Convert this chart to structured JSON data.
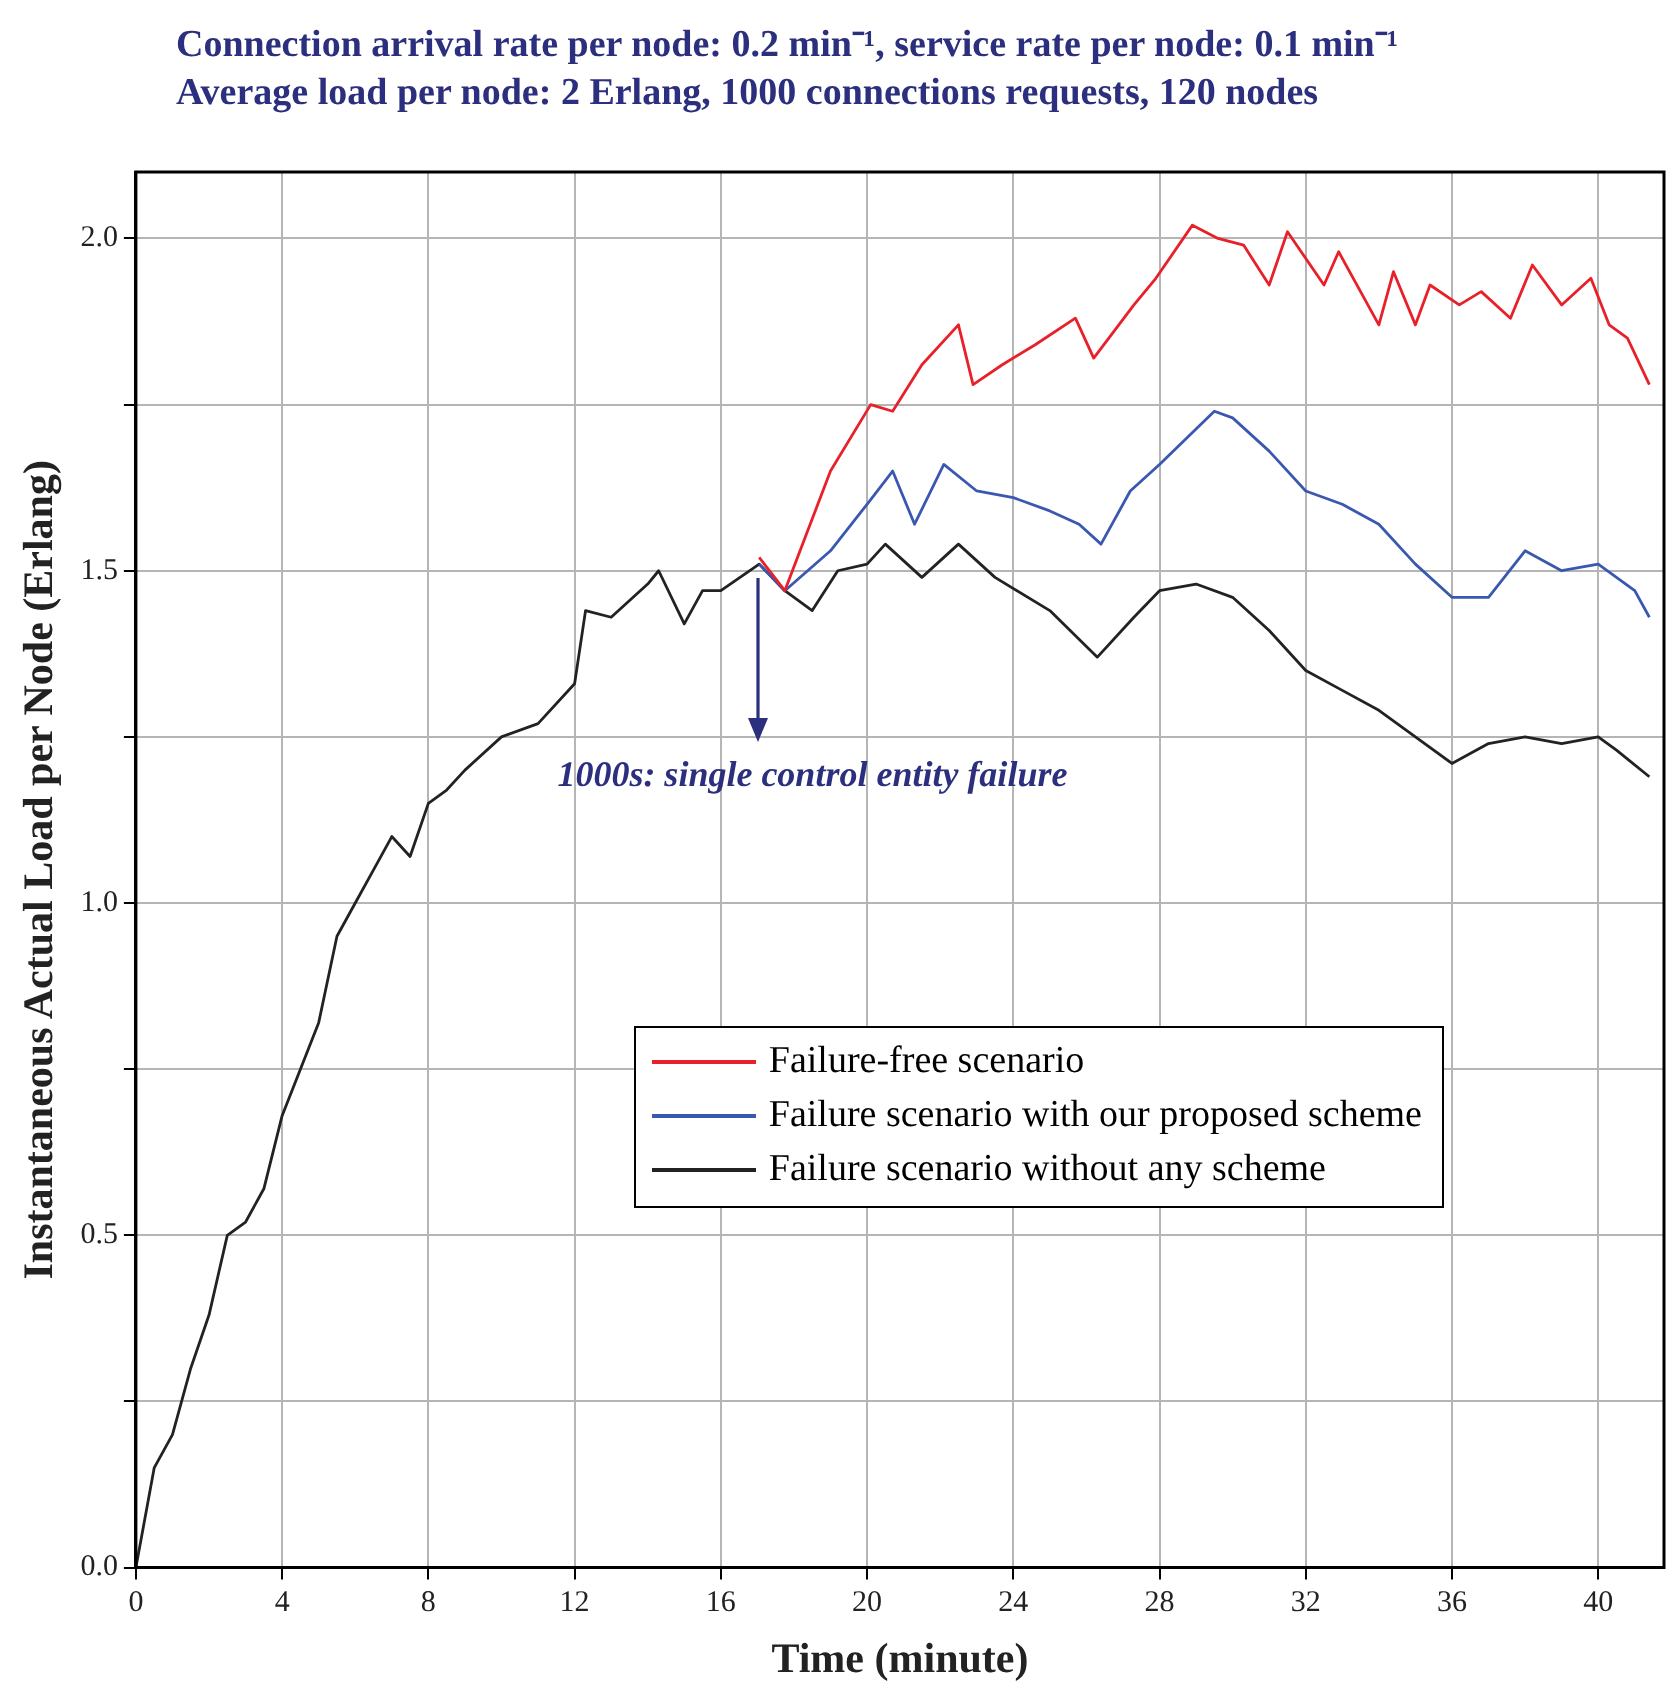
{
  "chart_data": {
    "type": "line",
    "title": "Connection arrival rate per node: 0.2 min⁻¹, service rate per node: 0.1 min⁻¹",
    "subtitle": "Average load per node: 2 Erlang, 1000 connections requests, 120 nodes",
    "xlabel": "Time (minute)",
    "ylabel": "Instantaneous Actual Load per Node (Erlang)",
    "xlim": [
      0,
      41.8
    ],
    "xticks": [
      0,
      4,
      8,
      12,
      16,
      20,
      24,
      28,
      32,
      36,
      40
    ],
    "ylim": [
      0,
      2.1
    ],
    "yticks": [
      {
        "value": 0,
        "label": "0.0"
      },
      {
        "value": 0.25,
        "label": null
      },
      {
        "value": 0.5,
        "label": "0.5"
      },
      {
        "value": 0.75,
        "label": null
      },
      {
        "value": 1,
        "label": "1.0"
      },
      {
        "value": 1.25,
        "label": null
      },
      {
        "value": 1.5,
        "label": "1.5"
      },
      {
        "value": 1.75,
        "label": null
      },
      {
        "value": 2,
        "label": "2.0"
      }
    ],
    "grid": true,
    "legend": "bottom right",
    "marker": "none",
    "line_style": "solid",
    "annotations": [
      {
        "text": "1000s: single control entity failure",
        "x": 17,
        "y": 1.5
      }
    ],
    "series": [
      {
        "name": "Failure-free scenario",
        "color": "#e8202a",
        "x": [
          17.05,
          17.75,
          19,
          20.1,
          20.7,
          21.5,
          22.5,
          22.9,
          23.7,
          24.6,
          25.7,
          26.2,
          27.3,
          27.9,
          28.9,
          29.6,
          30.3,
          31,
          31.5,
          32.5,
          32.9,
          34,
          34.4,
          35,
          35.4,
          36.2,
          36.8,
          37.6,
          38.2,
          39,
          39.8,
          40.3,
          40.8,
          41.4
        ],
        "values": [
          1.52,
          1.47,
          1.65,
          1.75,
          1.74,
          1.81,
          1.87,
          1.78,
          1.81,
          1.84,
          1.88,
          1.82,
          1.9,
          1.94,
          2.02,
          2.0,
          1.99,
          1.93,
          2.01,
          1.93,
          1.98,
          1.87,
          1.95,
          1.87,
          1.93,
          1.9,
          1.92,
          1.88,
          1.96,
          1.9,
          1.94,
          1.87,
          1.85,
          1.78
        ]
      },
      {
        "name": "Failure scenario with our proposed scheme",
        "color": "#3a58b0",
        "x": [
          17.05,
          17.75,
          19,
          20,
          20.7,
          21.3,
          22.1,
          23,
          24,
          25,
          25.8,
          26.4,
          27.2,
          28,
          29.5,
          30,
          31,
          32,
          33,
          34,
          35,
          36,
          37,
          38,
          39,
          40,
          41,
          41.4
        ],
        "values": [
          1.51,
          1.47,
          1.53,
          1.6,
          1.65,
          1.57,
          1.66,
          1.62,
          1.61,
          1.59,
          1.57,
          1.54,
          1.62,
          1.66,
          1.74,
          1.73,
          1.68,
          1.62,
          1.6,
          1.57,
          1.51,
          1.46,
          1.46,
          1.53,
          1.5,
          1.51,
          1.47,
          1.43
        ]
      },
      {
        "name": "Failure scenario without any scheme",
        "color": "#222222",
        "x": [
          0,
          0.5,
          1,
          1.5,
          2,
          2.5,
          3,
          3.5,
          4,
          4.5,
          5,
          5.5,
          6,
          6.5,
          7,
          7.5,
          8,
          8.5,
          9,
          10,
          11,
          12,
          12.3,
          13,
          14,
          14.3,
          15,
          15.5,
          16,
          17.05,
          17.75,
          18.5,
          19.2,
          20,
          20.5,
          21.5,
          22.5,
          23.5,
          25,
          26.3,
          27.3,
          28,
          29,
          30,
          31,
          32,
          33,
          34,
          35,
          36,
          37,
          38,
          39,
          40,
          40.5,
          41.4
        ],
        "values": [
          0,
          0.15,
          0.2,
          0.3,
          0.38,
          0.5,
          0.52,
          0.57,
          0.68,
          0.75,
          0.82,
          0.95,
          1.0,
          1.05,
          1.1,
          1.07,
          1.15,
          1.17,
          1.2,
          1.25,
          1.27,
          1.33,
          1.44,
          1.43,
          1.48,
          1.5,
          1.42,
          1.47,
          1.47,
          1.51,
          1.47,
          1.44,
          1.5,
          1.51,
          1.54,
          1.49,
          1.54,
          1.49,
          1.44,
          1.37,
          1.43,
          1.47,
          1.48,
          1.46,
          1.41,
          1.35,
          1.32,
          1.29,
          1.25,
          1.21,
          1.24,
          1.25,
          1.24,
          1.25,
          1.23,
          1.19
        ]
      }
    ]
  }
}
